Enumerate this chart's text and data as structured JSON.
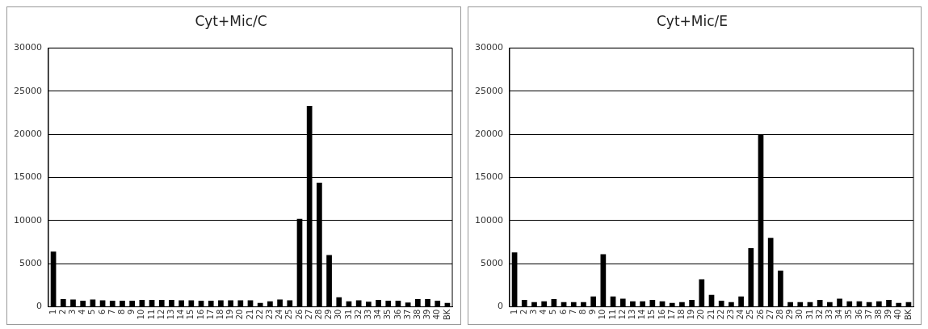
{
  "chart_data": [
    {
      "type": "bar",
      "title": "Cyt+Mic/C",
      "categories": [
        "1",
        "2",
        "3",
        "4",
        "5",
        "6",
        "7",
        "8",
        "9",
        "10",
        "11",
        "12",
        "13",
        "14",
        "15",
        "16",
        "17",
        "18",
        "19",
        "20",
        "21",
        "22",
        "23",
        "24",
        "25",
        "26",
        "27",
        "28",
        "29",
        "30",
        "31",
        "32",
        "33",
        "34",
        "35",
        "36",
        "37",
        "38",
        "39",
        "40",
        "BK"
      ],
      "values": [
        6400,
        900,
        850,
        700,
        850,
        750,
        700,
        700,
        700,
        800,
        800,
        800,
        800,
        750,
        750,
        700,
        700,
        750,
        750,
        750,
        750,
        450,
        650,
        850,
        750,
        10200,
        23300,
        14400,
        6000,
        1100,
        650,
        750,
        600,
        800,
        700,
        700,
        500,
        900,
        900,
        700,
        450
      ],
      "color": "#000000",
      "ylim": [
        0,
        30000
      ],
      "yticks": [
        0,
        5000,
        10000,
        15000,
        20000,
        25000,
        30000
      ],
      "grid": "y"
    },
    {
      "type": "bar",
      "title": "Cyt+Mic/E",
      "categories": [
        "1",
        "2",
        "3",
        "4",
        "5",
        "6",
        "7",
        "8",
        "9",
        "10",
        "11",
        "12",
        "13",
        "14",
        "15",
        "16",
        "17",
        "18",
        "19",
        "20",
        "21",
        "22",
        "23",
        "24",
        "25",
        "26",
        "27",
        "28",
        "29",
        "30",
        "31",
        "32",
        "33",
        "34",
        "35",
        "36",
        "37",
        "38",
        "39",
        "40",
        "BK"
      ],
      "values": [
        6300,
        800,
        550,
        650,
        900,
        550,
        550,
        550,
        1200,
        6100,
        1200,
        950,
        650,
        650,
        800,
        650,
        450,
        550,
        800,
        3200,
        1400,
        700,
        550,
        1200,
        6800,
        20000,
        8000,
        4200,
        550,
        550,
        550,
        800,
        550,
        950,
        650,
        650,
        550,
        650,
        800,
        450,
        550
      ],
      "color": "#000000",
      "ylim": [
        0,
        30000
      ],
      "yticks": [
        0,
        5000,
        10000,
        15000,
        20000,
        25000,
        30000
      ],
      "grid": "y"
    }
  ]
}
